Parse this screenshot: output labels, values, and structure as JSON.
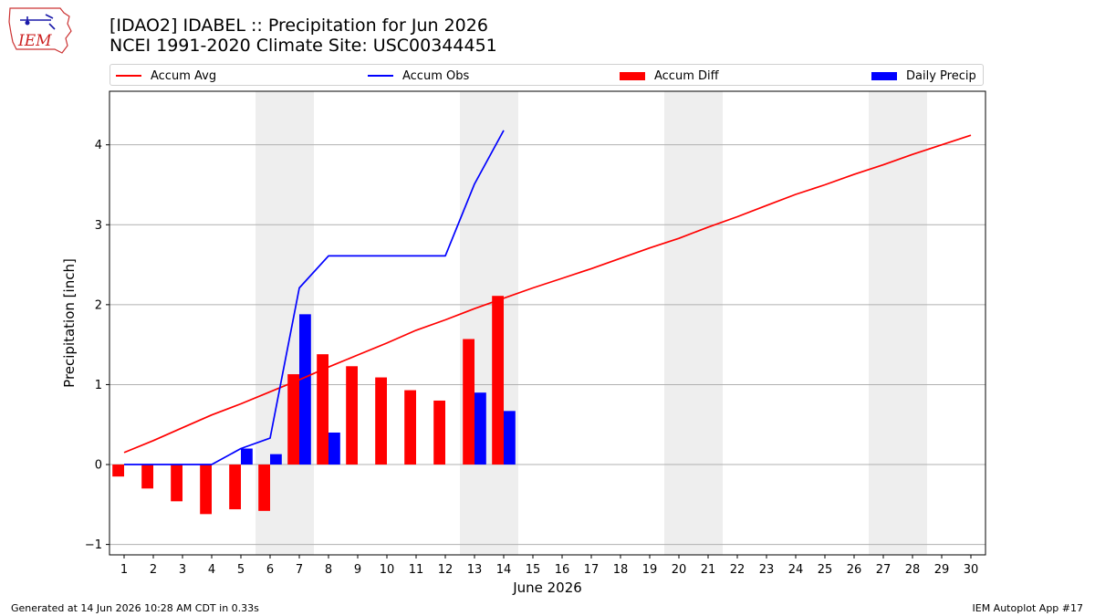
{
  "logo": {
    "text": "IEM",
    "color": "#cc2222"
  },
  "title_line1": "[IDAO2] IDABEL :: Precipitation for Jun 2026",
  "title_line2": "NCEI 1991-2020 Climate Site: USC00344451",
  "legend": [
    {
      "label": "Accum Avg",
      "kind": "line",
      "color": "#ff0000"
    },
    {
      "label": "Accum Obs",
      "kind": "line",
      "color": "#0000ff"
    },
    {
      "label": "Accum Diff",
      "kind": "bar",
      "color": "#ff0000"
    },
    {
      "label": "Daily Precip",
      "kind": "bar",
      "color": "#0000ff"
    }
  ],
  "footer_left": "Generated at 14 Jun 2026 10:28 AM CDT in 0.33s",
  "footer_right": "IEM Autoplot App #17",
  "chart_data": {
    "type": "bar",
    "xlabel": "June 2026",
    "ylabel": "Precipitation [inch]",
    "x_ticks": [
      1,
      2,
      3,
      4,
      5,
      6,
      7,
      8,
      9,
      10,
      11,
      12,
      13,
      14,
      15,
      16,
      17,
      18,
      19,
      20,
      21,
      22,
      23,
      24,
      25,
      26,
      27,
      28,
      29,
      30
    ],
    "xlim": [
      0.5,
      30.5
    ],
    "ylim": [
      -1.13,
      4.67
    ],
    "y_ticks": [
      -1,
      0,
      1,
      2,
      3,
      4
    ],
    "grid": "horizontal",
    "weekend_shading": [
      [
        6,
        7
      ],
      [
        13,
        14
      ],
      [
        20,
        21
      ],
      [
        27,
        28
      ]
    ],
    "colors": {
      "avg": "#ff0000",
      "obs": "#0000ff",
      "diff": "#ff0000",
      "daily": "#0000ff",
      "weekend": "#eeeeee",
      "grid": "#b0b0b0"
    },
    "series": [
      {
        "name": "Accum Avg",
        "kind": "line",
        "x": [
          1,
          2,
          3,
          4,
          5,
          6,
          7,
          8,
          9,
          10,
          11,
          12,
          13,
          14,
          15,
          16,
          17,
          18,
          19,
          20,
          21,
          22,
          23,
          24,
          25,
          26,
          27,
          28,
          29,
          30
        ],
        "values": [
          0.15,
          0.3,
          0.46,
          0.62,
          0.76,
          0.91,
          1.06,
          1.22,
          1.37,
          1.52,
          1.68,
          1.81,
          1.95,
          2.08,
          2.21,
          2.33,
          2.45,
          2.58,
          2.71,
          2.83,
          2.97,
          3.1,
          3.24,
          3.38,
          3.5,
          3.63,
          3.75,
          3.88,
          4.0,
          4.12
        ]
      },
      {
        "name": "Accum Obs",
        "kind": "line",
        "x": [
          1,
          2,
          3,
          4,
          5,
          6,
          7,
          8,
          9,
          10,
          11,
          12,
          13,
          14
        ],
        "values": [
          0.0,
          0.0,
          0.0,
          0.0,
          0.2,
          0.33,
          2.21,
          2.61,
          2.61,
          2.61,
          2.61,
          2.61,
          3.51,
          4.18
        ]
      },
      {
        "name": "Accum Diff",
        "kind": "bar",
        "x": [
          1,
          2,
          3,
          4,
          5,
          6,
          7,
          8,
          9,
          10,
          11,
          12,
          13,
          14
        ],
        "values": [
          -0.15,
          -0.3,
          -0.46,
          -0.62,
          -0.56,
          -0.58,
          1.13,
          1.38,
          1.23,
          1.09,
          0.93,
          0.8,
          1.57,
          2.11
        ]
      },
      {
        "name": "Daily Precip",
        "kind": "bar",
        "x": [
          1,
          2,
          3,
          4,
          5,
          6,
          7,
          8,
          9,
          10,
          11,
          12,
          13,
          14
        ],
        "values": [
          0.0,
          0.0,
          0.0,
          0.0,
          0.2,
          0.13,
          1.88,
          0.4,
          0.0,
          0.0,
          0.0,
          0.0,
          0.9,
          0.67
        ]
      }
    ]
  }
}
